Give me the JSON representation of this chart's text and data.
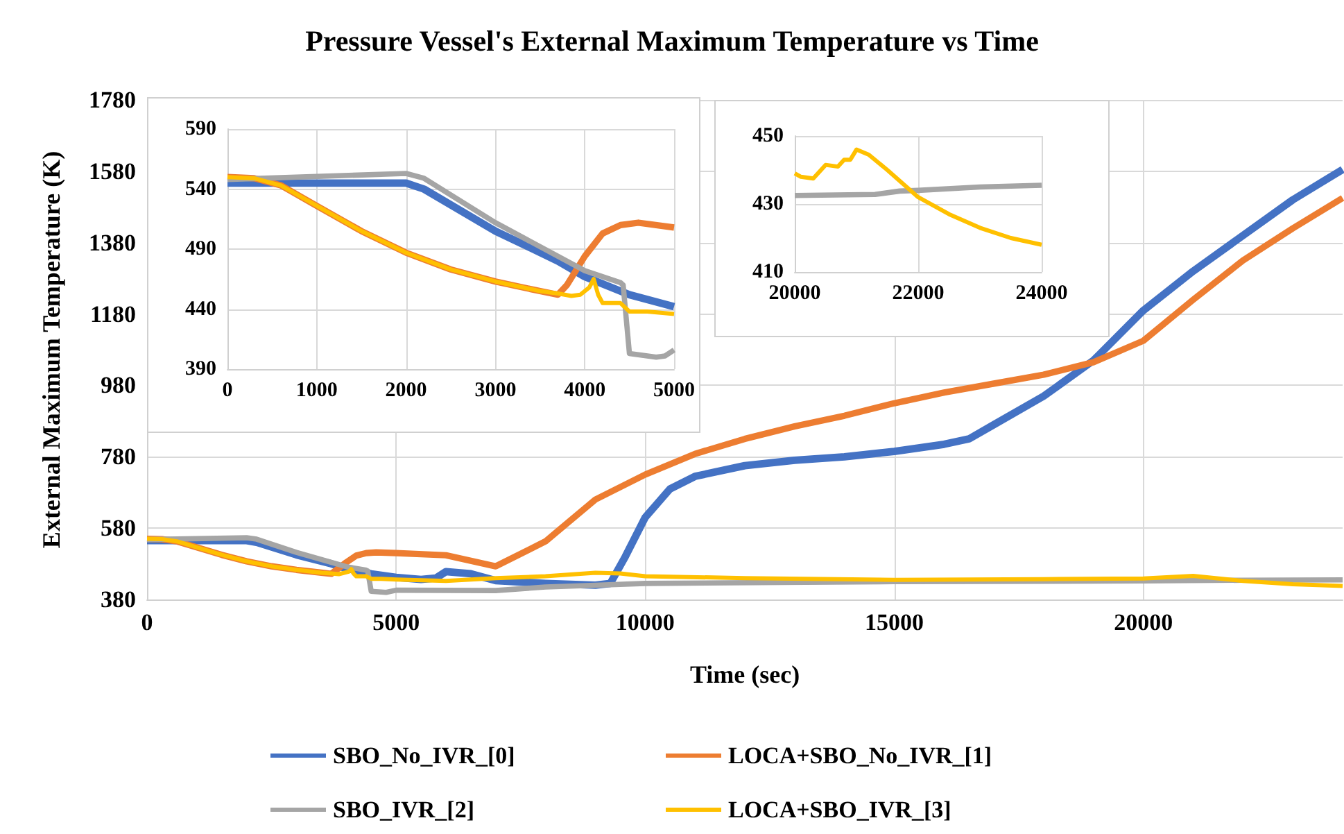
{
  "chart_data": [
    {
      "type": "line",
      "title": "Pressure Vessel's External Maximum Temperature vs Time",
      "xlabel": "Time (sec)",
      "ylabel": "External Maximum Temperature (K)",
      "xlim": [
        0,
        24000
      ],
      "xticks": [
        0,
        5000,
        10000,
        15000,
        20000
      ],
      "ylim": [
        380,
        1780
      ],
      "yticks": [
        380,
        580,
        780,
        980,
        1180,
        1380,
        1580,
        1780
      ],
      "grid": true,
      "legend": "bottom",
      "series": [
        {
          "name": "SBO_No_IVR_[0]",
          "color": "#4472c4",
          "x": [
            0,
            500,
            2000,
            2200,
            3000,
            3700,
            4000,
            4500,
            5000,
            5500,
            5800,
            6000,
            6500,
            7000,
            8000,
            9000,
            9300,
            9600,
            10000,
            10500,
            11000,
            12000,
            13000,
            14000,
            15000,
            16000,
            16500,
            17000,
            18000,
            19000,
            20000,
            21000,
            22000,
            23000,
            24000
          ],
          "values": [
            545,
            545,
            545,
            540,
            505,
            480,
            467,
            452,
            442,
            436,
            440,
            458,
            452,
            433,
            425,
            420,
            425,
            500,
            610,
            690,
            725,
            755,
            770,
            780,
            795,
            815,
            830,
            870,
            950,
            1050,
            1190,
            1300,
            1400,
            1500,
            1585
          ]
        },
        {
          "name": "LOCA+SBO_No_IVR_[1]",
          "color": "#ed7d31",
          "x": [
            0,
            300,
            600,
            1000,
            1500,
            2000,
            2500,
            3000,
            3500,
            3700,
            4000,
            4200,
            4400,
            4600,
            5000,
            6000,
            7000,
            8000,
            9000,
            10000,
            11000,
            12000,
            13000,
            14000,
            15000,
            16000,
            17000,
            18000,
            19000,
            20000,
            21000,
            22000,
            23000,
            24000
          ],
          "values": [
            550,
            549,
            543,
            526,
            505,
            487,
            473,
            463,
            455,
            452,
            484,
            503,
            510,
            512,
            510,
            504,
            473,
            543,
            660,
            730,
            788,
            830,
            865,
            895,
            930,
            960,
            985,
            1010,
            1045,
            1105,
            1220,
            1330,
            1420,
            1505
          ]
        },
        {
          "name": "SBO_IVR_[2]",
          "color": "#a5a5a5",
          "x": [
            0,
            2000,
            2200,
            3000,
            4000,
            4400,
            4430,
            4500,
            4600,
            4800,
            5000,
            7000,
            8000,
            9000,
            10000,
            15000,
            20000,
            22000,
            24000
          ],
          "values": [
            548,
            553,
            549,
            512,
            472,
            462,
            460,
            403,
            402,
            400,
            406,
            405,
            415,
            420,
            425,
            430,
            432,
            434,
            435
          ]
        },
        {
          "name": "LOCA+SBO_IVR_[3]",
          "color": "#ffc000",
          "x": [
            0,
            300,
            600,
            1000,
            1500,
            2000,
            2500,
            3000,
            3500,
            3700,
            3850,
            4050,
            4100,
            4150,
            4200,
            4400,
            4500,
            4700,
            5000,
            6000,
            7000,
            8000,
            9000,
            9500,
            10000,
            12000,
            15000,
            18000,
            20000,
            21000,
            22000,
            23000,
            24000
          ],
          "values": [
            550,
            549,
            543,
            526,
            505,
            487,
            473,
            463,
            455,
            453,
            451,
            458,
            465,
            452,
            445,
            445,
            438,
            438,
            436,
            432,
            440,
            445,
            455,
            453,
            445,
            440,
            435,
            437,
            439,
            446,
            432,
            423,
            418
          ]
        }
      ]
    },
    {
      "type": "line",
      "xlim": [
        0,
        5000
      ],
      "xticks": [
        0,
        1000,
        2000,
        3000,
        4000,
        5000
      ],
      "ylim": [
        390,
        590
      ],
      "yticks": [
        390,
        440,
        490,
        540,
        590
      ],
      "grid": true,
      "series": [
        {
          "color": "#4472c4",
          "x": [
            0,
            500,
            2000,
            2200,
            3000,
            3700,
            4000,
            4500,
            5000
          ],
          "values": [
            545,
            545,
            545,
            540,
            505,
            480,
            467,
            452,
            442
          ]
        },
        {
          "color": "#ed7d31",
          "x": [
            0,
            300,
            600,
            1000,
            1500,
            2000,
            2500,
            3000,
            3500,
            3700,
            3800,
            4000,
            4200,
            4400,
            4600,
            5000
          ],
          "values": [
            550,
            549,
            543,
            526,
            505,
            487,
            473,
            463,
            455,
            452,
            460,
            484,
            503,
            510,
            512,
            508
          ]
        },
        {
          "color": "#a5a5a5",
          "x": [
            0,
            2000,
            2200,
            3000,
            4000,
            4400,
            4430,
            4500,
            4600,
            4800,
            4900,
            5000
          ],
          "values": [
            548,
            553,
            549,
            512,
            472,
            462,
            460,
            403,
            402,
            400,
            401,
            406
          ]
        },
        {
          "color": "#ffc000",
          "x": [
            0,
            300,
            600,
            1000,
            1500,
            2000,
            2500,
            3000,
            3500,
            3700,
            3850,
            3950,
            4050,
            4100,
            4150,
            4200,
            4400,
            4500,
            4700,
            5000
          ],
          "values": [
            550,
            549,
            543,
            526,
            505,
            487,
            473,
            463,
            455,
            453,
            451,
            452,
            458,
            465,
            452,
            445,
            445,
            438,
            438,
            436
          ]
        }
      ]
    },
    {
      "type": "line",
      "xlim": [
        20000,
        24000
      ],
      "xticks": [
        20000,
        22000,
        24000
      ],
      "ylim": [
        410,
        450
      ],
      "yticks": [
        410,
        430,
        450
      ],
      "grid": true,
      "series": [
        {
          "color": "#a5a5a5",
          "x": [
            20000,
            21300,
            21700,
            22000,
            23000,
            24000
          ],
          "values": [
            432.5,
            432.8,
            433.8,
            434,
            435,
            435.5
          ]
        },
        {
          "color": "#ffc000",
          "x": [
            20000,
            20100,
            20300,
            20500,
            20700,
            20800,
            20900,
            21000,
            21200,
            21500,
            22000,
            22500,
            23000,
            23500,
            24000
          ],
          "values": [
            439,
            438,
            437.5,
            441.5,
            441,
            443,
            443,
            446,
            444.5,
            440,
            432,
            427,
            423,
            420,
            418
          ]
        }
      ]
    }
  ]
}
